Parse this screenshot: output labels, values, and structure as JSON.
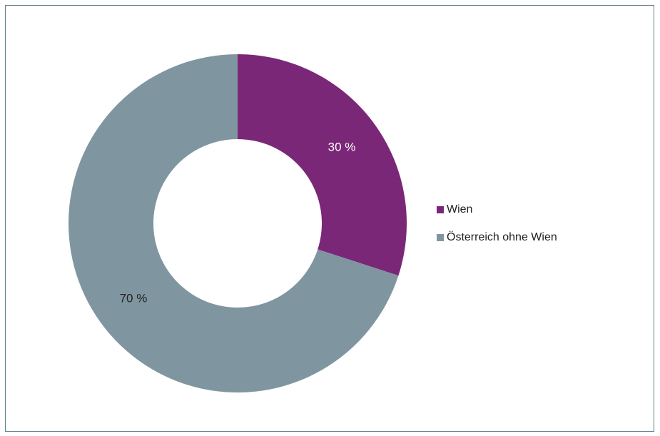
{
  "chart_data": {
    "type": "pie",
    "donut": true,
    "title": "",
    "categories": [
      "Wien",
      "Österreich ohne Wien"
    ],
    "values": [
      30,
      70
    ],
    "data_labels": [
      "30 %",
      "70 %"
    ],
    "colors": [
      "#7b2778",
      "#7f96a0"
    ],
    "label_colors": [
      "#ffffff",
      "#222222"
    ],
    "legend_position": "right"
  }
}
